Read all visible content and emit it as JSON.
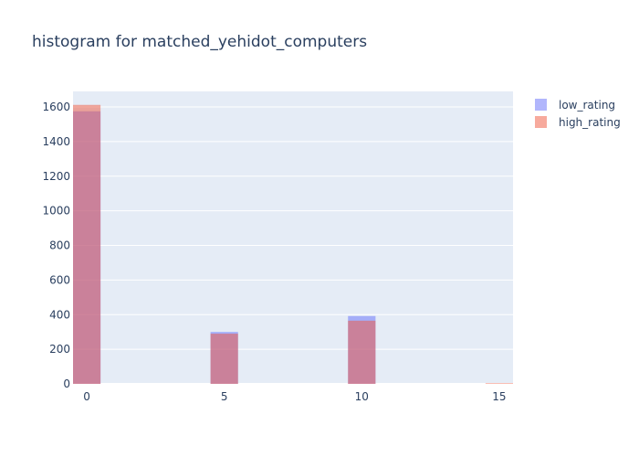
{
  "chart_data": {
    "type": "bar",
    "title": "histogram for matched_yehidot_computers",
    "xlabel": "",
    "ylabel": "",
    "barmode": "overlay",
    "bin_width": 1,
    "xlim": [
      -0.5,
      15.5
    ],
    "ylim": [
      0,
      1690
    ],
    "xticks": [
      0,
      5,
      10,
      15
    ],
    "yticks": [
      0,
      200,
      400,
      600,
      800,
      1000,
      1200,
      1400,
      1600
    ],
    "grid": true,
    "legend_position": "top-right",
    "series": [
      {
        "name": "low_rating",
        "color": "#636efa",
        "opacity": 0.5,
        "x": [
          0,
          5,
          10,
          15
        ],
        "values": [
          1575,
          300,
          392,
          0
        ]
      },
      {
        "name": "high_rating",
        "color": "#ef553b",
        "opacity": 0.5,
        "x": [
          0,
          5,
          10,
          15
        ],
        "values": [
          1612,
          290,
          365,
          4
        ]
      }
    ]
  }
}
